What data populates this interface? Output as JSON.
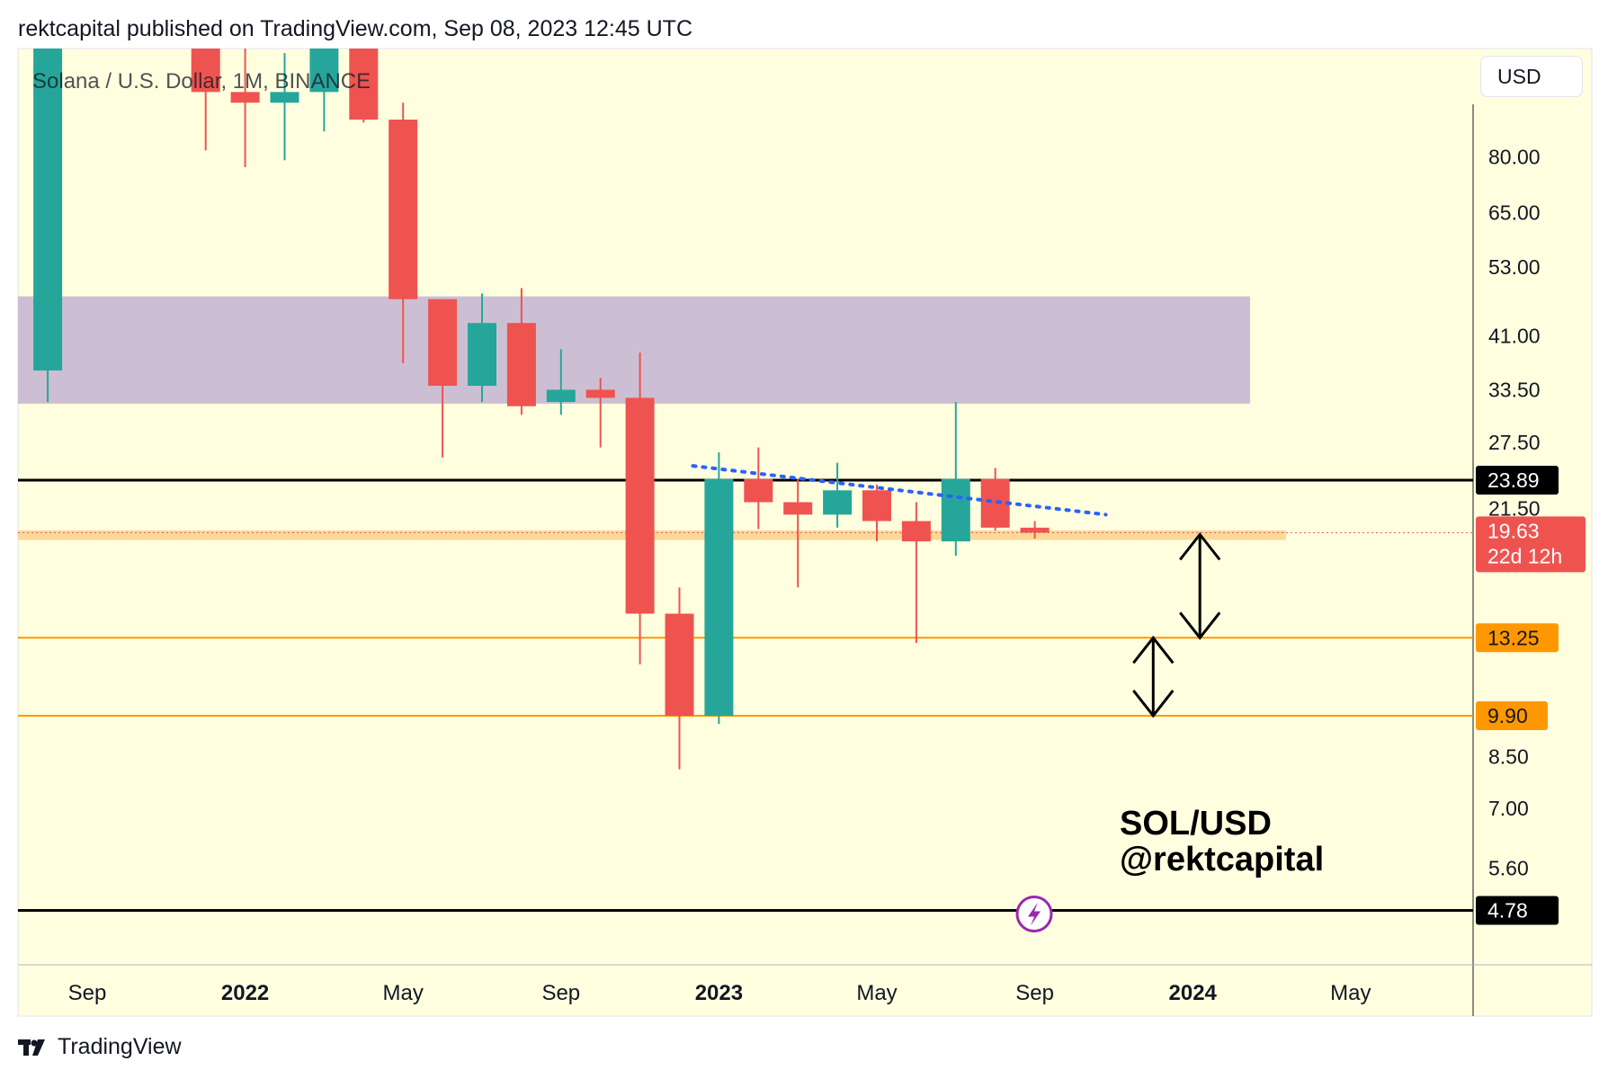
{
  "header": {
    "text": "rektcapital published on TradingView.com, Sep 08, 2023 12:45 UTC"
  },
  "footer": {
    "brand": "TradingView"
  },
  "currency_button": "USD",
  "colors": {
    "background": "#ffffe0",
    "bull": "#26a69a",
    "bear": "#ef5350",
    "zone": "#cdbfd3",
    "support_band": "#fcd89a",
    "orange_level": "#ff9800",
    "black_level": "#000000",
    "trend": "#2962ff"
  },
  "chart_data": {
    "type": "candlestick",
    "title": "Solana / U.S. Dollar, 1M, BINANCE",
    "scale": "log",
    "ylim": [
      3.9,
      120
    ],
    "x_ticks": [
      {
        "label": "Sep",
        "bold": false,
        "index": 0
      },
      {
        "label": "2022",
        "bold": true,
        "index": 4
      },
      {
        "label": "May",
        "bold": false,
        "index": 8
      },
      {
        "label": "Sep",
        "bold": false,
        "index": 12
      },
      {
        "label": "2023",
        "bold": true,
        "index": 16
      },
      {
        "label": "May",
        "bold": false,
        "index": 20
      },
      {
        "label": "Sep",
        "bold": false,
        "index": 24
      },
      {
        "label": "2024",
        "bold": true,
        "index": 28
      },
      {
        "label": "May",
        "bold": false,
        "index": 32
      }
    ],
    "y_ticks": [
      80,
      65,
      53,
      41,
      33.5,
      27.5,
      21.5,
      8.5,
      7,
      5.6
    ],
    "y_tick_labels": [
      "80.00",
      "65.00",
      "53.00",
      "41.00",
      "33.50",
      "27.50",
      "21.50",
      "8.50",
      "7.00",
      "5.60"
    ],
    "candles": [
      {
        "date": "2021-08",
        "o": 36,
        "h": 120,
        "l": 32,
        "c": 120
      },
      {
        "date": "2021-12",
        "o": 172,
        "h": 204,
        "l": 82,
        "c": 102
      },
      {
        "date": "2022-01",
        "o": 102,
        "h": 142,
        "l": 77,
        "c": 98
      },
      {
        "date": "2022-02",
        "o": 98,
        "h": 118,
        "l": 79,
        "c": 102
      },
      {
        "date": "2022-03",
        "o": 102,
        "h": 143,
        "l": 88,
        "c": 124
      },
      {
        "date": "2022-04",
        "o": 124,
        "h": 136,
        "l": 91,
        "c": 92
      },
      {
        "date": "2022-05",
        "o": 92,
        "h": 98,
        "l": 37,
        "c": 47
      },
      {
        "date": "2022-06",
        "o": 47,
        "h": 47,
        "l": 26,
        "c": 34
      },
      {
        "date": "2022-07",
        "o": 34,
        "h": 48,
        "l": 32,
        "c": 43
      },
      {
        "date": "2022-08",
        "o": 43,
        "h": 49,
        "l": 30.5,
        "c": 31.5
      },
      {
        "date": "2022-09",
        "o": 32,
        "h": 39,
        "l": 30.5,
        "c": 33.5
      },
      {
        "date": "2022-10",
        "o": 33.5,
        "h": 35,
        "l": 27,
        "c": 32.5
      },
      {
        "date": "2022-11",
        "o": 32.5,
        "h": 38.5,
        "l": 12,
        "c": 14.5
      },
      {
        "date": "2022-12",
        "o": 14.5,
        "h": 16,
        "l": 8.1,
        "c": 9.9
      },
      {
        "date": "2023-01",
        "o": 9.9,
        "h": 26.5,
        "l": 9.6,
        "c": 24
      },
      {
        "date": "2023-02",
        "o": 24,
        "h": 27,
        "l": 19.9,
        "c": 22
      },
      {
        "date": "2023-03",
        "o": 22,
        "h": 24,
        "l": 16,
        "c": 21
      },
      {
        "date": "2023-04",
        "o": 21,
        "h": 25.5,
        "l": 20,
        "c": 23
      },
      {
        "date": "2023-05",
        "o": 23,
        "h": 23.5,
        "l": 19,
        "c": 20.5
      },
      {
        "date": "2023-06",
        "o": 20.5,
        "h": 22,
        "l": 13,
        "c": 19
      },
      {
        "date": "2023-07",
        "o": 19,
        "h": 32,
        "l": 18,
        "c": 24
      },
      {
        "date": "2023-08",
        "o": 24,
        "h": 25,
        "l": 19.8,
        "c": 20
      },
      {
        "date": "2023-09",
        "o": 20,
        "h": 20.5,
        "l": 19.2,
        "c": 19.63
      }
    ],
    "zone": {
      "low": 31.8,
      "high": 47.5,
      "end_date": "2024-02"
    },
    "support_band": {
      "low": 19.1,
      "high": 19.8,
      "end_date": "2024-04"
    },
    "levels": [
      {
        "value": 23.89,
        "label": "23.89",
        "color": "#000000",
        "width": 3
      },
      {
        "value": 13.25,
        "label": "13.25",
        "color": "#ff9800",
        "width": 2
      },
      {
        "value": 9.9,
        "label": "9.90",
        "color": "#ff9800",
        "width": 2
      },
      {
        "value": 4.78,
        "label": "4.78",
        "color": "#000000",
        "width": 3
      }
    ],
    "current_price": {
      "value": 19.63,
      "label": "19.63",
      "countdown": "22d 12h"
    },
    "trendline": {
      "start": {
        "date": "2022-12",
        "value": 25.2
      },
      "end": {
        "date": "2023-10",
        "value": 21
      }
    },
    "arrows": [
      {
        "date": "2024-01",
        "top": 19.5,
        "bottom": 13.25
      },
      {
        "date": "2023-12",
        "top": 13.25,
        "bottom": 9.9
      }
    ],
    "annotation": {
      "line1": "SOL/USD",
      "line2": "@rektcapital"
    }
  }
}
